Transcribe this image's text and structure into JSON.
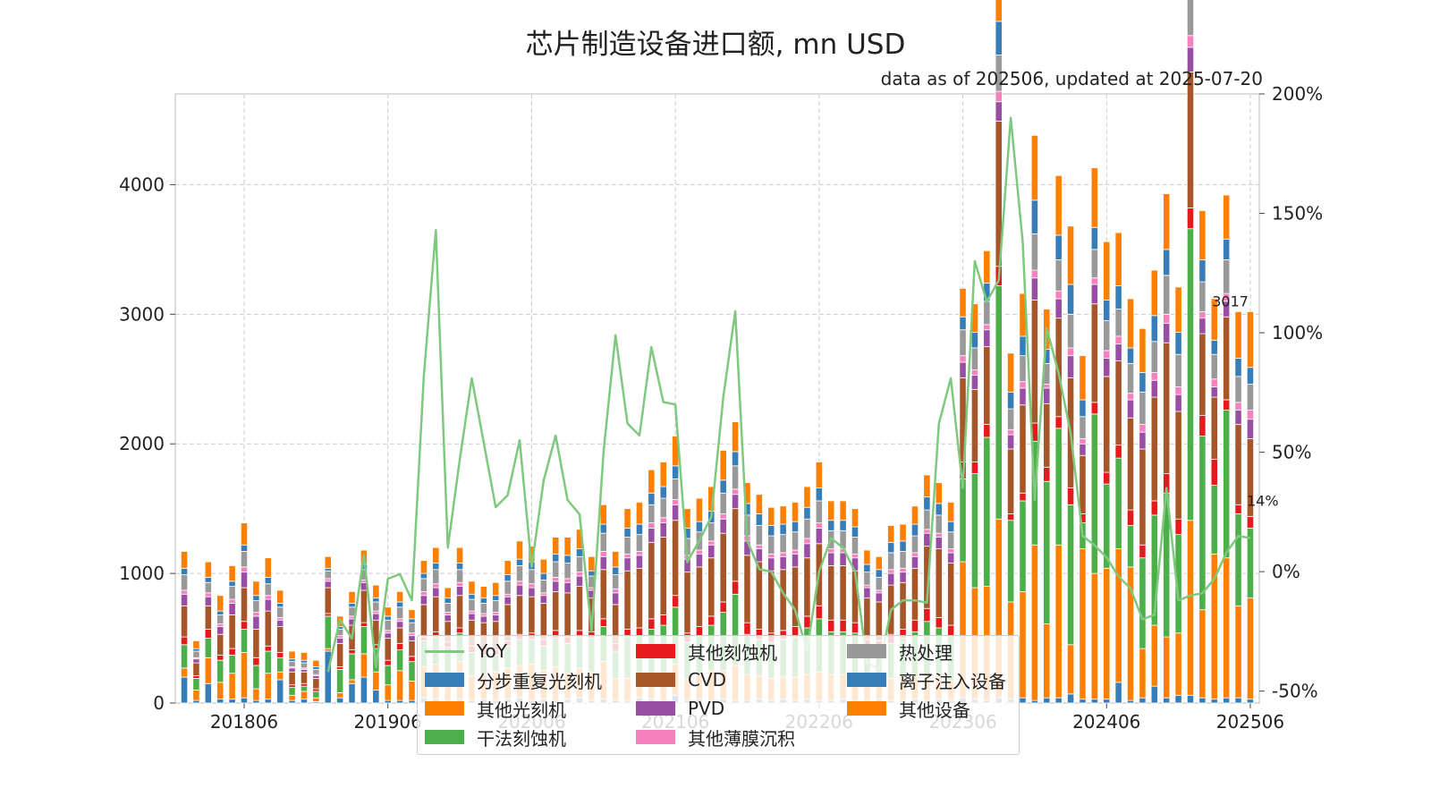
{
  "chart_data": {
    "type": "bar",
    "title": "芯片制造设备进口额, mn USD",
    "subtitle": "data as of 202506, updated at 2025-07-20",
    "x_tick_labels": [
      "201806",
      "201906",
      "202006",
      "202106",
      "202206",
      "202306",
      "202406",
      "202506"
    ],
    "y_left": {
      "ylim": [
        0,
        4700
      ],
      "ticks": [
        "0",
        "1000",
        "2000",
        "3000",
        "4000"
      ]
    },
    "y_right": {
      "ylim": [
        -0.55,
        2.0
      ],
      "ticks": [
        "-50%",
        "0%",
        "50%",
        "100%",
        "150%",
        "200%"
      ]
    },
    "grid": true,
    "legend_position": "bottom-center",
    "end_labels": {
      "total": "3017",
      "yoy": "14%"
    },
    "categories": [
      "201801",
      "201802",
      "201803",
      "201804",
      "201805",
      "201806",
      "201807",
      "201808",
      "201809",
      "201810",
      "201811",
      "201812",
      "201901",
      "201902",
      "201903",
      "201904",
      "201905",
      "201906",
      "201907",
      "201908",
      "201909",
      "201910",
      "201911",
      "201912",
      "202001",
      "202002",
      "202003",
      "202004",
      "202005",
      "202006",
      "202007",
      "202008",
      "202009",
      "202010",
      "202011",
      "202012",
      "202101",
      "202102",
      "202103",
      "202104",
      "202105",
      "202106",
      "202107",
      "202108",
      "202109",
      "202110",
      "202111",
      "202112",
      "202201",
      "202202",
      "202203",
      "202204",
      "202205",
      "202206",
      "202207",
      "202208",
      "202209",
      "202210",
      "202211",
      "202212",
      "202301",
      "202302",
      "202303",
      "202304",
      "202305",
      "202306",
      "202307",
      "202308",
      "202309",
      "202310",
      "202311",
      "202312",
      "202401",
      "202402",
      "202403",
      "202404",
      "202405",
      "202406",
      "202407",
      "202408",
      "202409",
      "202410",
      "202411",
      "202412",
      "202501",
      "202502",
      "202503",
      "202504",
      "202505",
      "202506"
    ],
    "series": [
      {
        "name": "YoY",
        "type": "line",
        "color": "#7fc97f",
        "values": [
          null,
          null,
          null,
          null,
          null,
          null,
          null,
          null,
          null,
          null,
          null,
          null,
          -0.42,
          -0.2,
          -0.28,
          0.07,
          -0.4,
          -0.03,
          -0.01,
          -0.12,
          0.82,
          1.43,
          0.1,
          0.47,
          0.81,
          0.54,
          0.27,
          0.32,
          0.55,
          0.02,
          0.38,
          0.57,
          0.3,
          0.24,
          -0.25,
          0.5,
          0.99,
          0.62,
          0.57,
          0.94,
          0.71,
          0.7,
          0.04,
          0.13,
          0.23,
          0.73,
          1.09,
          0.13,
          0.01,
          0.0,
          -0.09,
          -0.16,
          -0.33,
          0.0,
          0.14,
          0.1,
          0.0,
          -0.38,
          -0.41,
          -0.16,
          -0.12,
          -0.12,
          -0.13,
          0.62,
          0.81,
          0.35,
          1.3,
          1.13,
          1.22,
          1.9,
          1.38,
          0.3,
          1.02,
          0.83,
          0.58,
          0.15,
          0.11,
          0.06,
          -0.02,
          -0.07,
          -0.2,
          -0.18,
          0.35,
          -0.12,
          -0.1,
          -0.09,
          -0.03,
          0.08,
          0.15,
          0.14
        ]
      },
      {
        "name": "分步重复光刻机",
        "color": "#377eb8",
        "values": [
          200,
          20,
          150,
          30,
          30,
          40,
          20,
          30,
          180,
          20,
          30,
          10,
          400,
          40,
          150,
          200,
          100,
          20,
          20,
          20,
          40,
          30,
          20,
          30,
          20,
          30,
          20,
          30,
          40,
          20,
          30,
          20,
          30,
          40,
          20,
          30,
          20,
          20,
          40,
          30,
          20,
          60,
          20,
          30,
          20,
          30,
          20,
          20,
          30,
          20,
          30,
          20,
          30,
          20,
          20,
          30,
          20,
          20,
          30,
          20,
          20,
          30,
          20,
          30,
          20,
          40,
          30,
          20,
          40,
          30,
          40,
          20,
          40,
          40,
          70,
          30,
          30,
          30,
          160,
          20,
          40,
          130,
          40,
          60,
          60,
          40,
          30,
          40,
          40,
          30
        ]
      },
      {
        "name": "其他光刻机",
        "color": "#ff7f00",
        "values": [
          70,
          80,
          200,
          130,
          200,
          350,
          90,
          200,
          60,
          40,
          60,
          30,
          20,
          40,
          30,
          180,
          140,
          120,
          230,
          150,
          240,
          270,
          190,
          290,
          190,
          190,
          220,
          240,
          250,
          280,
          220,
          260,
          200,
          230,
          220,
          290,
          170,
          170,
          180,
          190,
          200,
          240,
          160,
          190,
          230,
          220,
          270,
          200,
          180,
          170,
          170,
          180,
          190,
          220,
          200,
          190,
          200,
          180,
          150,
          170,
          180,
          170,
          180,
          170,
          150,
          1050,
          860,
          880,
          1380,
          750,
          820,
          1200,
          570,
          1180,
          380,
          1160,
          970,
          1010,
          1030,
          1030,
          380,
          470,
          470,
          480,
          1350,
          680,
          1120,
          1080,
          710,
          780
        ]
      },
      {
        "name": "干法刻蚀机",
        "color": "#4daf4a",
        "values": [
          180,
          90,
          150,
          170,
          140,
          180,
          180,
          170,
          110,
          60,
          40,
          50,
          250,
          180,
          200,
          210,
          180,
          150,
          160,
          150,
          200,
          210,
          220,
          220,
          180,
          150,
          130,
          170,
          200,
          190,
          190,
          220,
          230,
          240,
          260,
          270,
          210,
          320,
          300,
          350,
          380,
          440,
          290,
          300,
          350,
          450,
          550,
          310,
          280,
          280,
          290,
          310,
          360,
          410,
          330,
          330,
          320,
          230,
          240,
          270,
          300,
          350,
          430,
          380,
          350,
          640,
          880,
          1150,
          1800,
          630,
          700,
          800,
          1100,
          900,
          1080,
          200,
          1230,
          650,
          700,
          320,
          700,
          850,
          1110,
          760,
          2250,
          1340,
          530,
          1140,
          710,
          540
        ]
      },
      {
        "name": "其他刻蚀机",
        "color": "#e41a1c",
        "values": [
          60,
          20,
          70,
          40,
          50,
          60,
          60,
          40,
          40,
          20,
          20,
          20,
          20,
          20,
          30,
          30,
          30,
          40,
          50,
          40,
          30,
          40,
          40,
          40,
          50,
          40,
          40,
          40,
          40,
          50,
          50,
          60,
          50,
          50,
          50,
          60,
          60,
          60,
          60,
          80,
          80,
          90,
          70,
          70,
          70,
          80,
          100,
          90,
          80,
          70,
          70,
          80,
          90,
          100,
          90,
          90,
          80,
          60,
          60,
          70,
          70,
          90,
          100,
          80,
          80,
          130,
          90,
          100,
          150,
          50,
          60,
          140,
          110,
          90,
          130,
          70,
          90,
          90,
          100,
          120,
          100,
          110,
          150,
          120,
          160,
          160,
          200,
          80,
          70,
          90
        ]
      },
      {
        "name": "CVD",
        "color": "#a65628",
        "values": [
          240,
          100,
          180,
          160,
          260,
          260,
          220,
          270,
          200,
          100,
          90,
          80,
          200,
          180,
          190,
          250,
          190,
          170,
          120,
          120,
          250,
          270,
          160,
          250,
          200,
          210,
          220,
          280,
          300,
          280,
          280,
          300,
          340,
          340,
          260,
          380,
          300,
          450,
          460,
          590,
          600,
          580,
          470,
          460,
          450,
          530,
          560,
          520,
          520,
          480,
          470,
          460,
          450,
          480,
          420,
          420,
          400,
          320,
          300,
          380,
          360,
          400,
          480,
          530,
          480,
          650,
          560,
          600,
          1120,
          500,
          680,
          950,
          490,
          760,
          850,
          450,
          760,
          740,
          650,
          710,
          740,
          800,
          1010,
          830,
          1050,
          630,
          480,
          640,
          620,
          600
        ]
      },
      {
        "name": "PVD",
        "color": "#984ea3",
        "values": [
          90,
          30,
          70,
          60,
          90,
          120,
          100,
          90,
          50,
          30,
          20,
          20,
          50,
          40,
          50,
          60,
          50,
          40,
          50,
          40,
          70,
          70,
          50,
          70,
          50,
          50,
          50,
          60,
          80,
          70,
          60,
          80,
          80,
          80,
          60,
          100,
          90,
          100,
          100,
          110,
          110,
          120,
          100,
          100,
          100,
          110,
          110,
          110,
          100,
          100,
          100,
          100,
          110,
          120,
          100,
          100,
          100,
          80,
          70,
          90,
          80,
          90,
          100,
          90,
          80,
          120,
          110,
          130,
          150,
          110,
          130,
          170,
          120,
          150,
          170,
          90,
          150,
          140,
          130,
          140,
          130,
          130,
          150,
          130,
          190,
          120,
          80,
          120,
          110,
          150
        ]
      },
      {
        "name": "其他薄膜沉积",
        "color": "#f781bf",
        "values": [
          30,
          10,
          30,
          20,
          30,
          40,
          30,
          30,
          20,
          10,
          10,
          10,
          20,
          20,
          20,
          20,
          20,
          20,
          20,
          20,
          30,
          30,
          20,
          30,
          20,
          20,
          20,
          20,
          30,
          30,
          20,
          30,
          30,
          30,
          20,
          40,
          30,
          30,
          30,
          40,
          40,
          40,
          30,
          30,
          30,
          40,
          40,
          40,
          30,
          30,
          30,
          30,
          40,
          40,
          30,
          30,
          30,
          20,
          20,
          30,
          30,
          30,
          30,
          30,
          30,
          50,
          40,
          40,
          80,
          40,
          50,
          60,
          30,
          60,
          60,
          40,
          50,
          60,
          60,
          50,
          60,
          60,
          70,
          60,
          90,
          50,
          60,
          60,
          60,
          70
        ]
      },
      {
        "name": "热处理",
        "color": "#999999",
        "values": [
          120,
          50,
          80,
          70,
          100,
          120,
          90,
          90,
          80,
          40,
          40,
          40,
          60,
          50,
          70,
          80,
          70,
          80,
          90,
          80,
          100,
          110,
          70,
          100,
          90,
          80,
          90,
          100,
          120,
          110,
          100,
          120,
          120,
          120,
          90,
          140,
          110,
          130,
          130,
          140,
          150,
          160,
          130,
          140,
          140,
          160,
          180,
          160,
          150,
          140,
          140,
          140,
          150,
          170,
          140,
          140,
          130,
          100,
          100,
          130,
          130,
          130,
          150,
          140,
          130,
          200,
          170,
          180,
          280,
          160,
          200,
          280,
          160,
          240,
          260,
          170,
          220,
          230,
          210,
          230,
          250,
          240,
          300,
          250,
          330,
          230,
          190,
          260,
          200,
          200
        ]
      },
      {
        "name": "离子注入设备",
        "color": "#377eb8",
        "values": [
          50,
          20,
          40,
          30,
          40,
          50,
          40,
          50,
          30,
          20,
          20,
          20,
          20,
          20,
          30,
          40,
          30,
          30,
          40,
          30,
          40,
          50,
          40,
          50,
          40,
          40,
          40,
          50,
          50,
          60,
          50,
          60,
          60,
          60,
          40,
          70,
          60,
          70,
          80,
          90,
          90,
          100,
          80,
          80,
          90,
          100,
          110,
          90,
          90,
          80,
          80,
          80,
          90,
          100,
          80,
          80,
          80,
          60,
          60,
          80,
          80,
          90,
          100,
          90,
          80,
          100,
          120,
          140,
          260,
          130,
          150,
          260,
          110,
          190,
          230,
          130,
          170,
          160,
          180,
          120,
          150,
          200,
          200,
          170,
          260,
          170,
          110,
          160,
          140,
          130
        ]
      },
      {
        "name": "其他设备",
        "color": "#ff7f00",
        "values": [
          130,
          60,
          120,
          120,
          120,
          170,
          110,
          150,
          100,
          60,
          60,
          50,
          90,
          80,
          90,
          110,
          100,
          70,
          80,
          70,
          100,
          120,
          80,
          120,
          100,
          90,
          100,
          110,
          140,
          120,
          110,
          130,
          140,
          150,
          110,
          150,
          120,
          150,
          170,
          180,
          190,
          230,
          150,
          180,
          190,
          230,
          230,
          160,
          150,
          140,
          140,
          150,
          160,
          200,
          150,
          150,
          140,
          110,
          100,
          130,
          130,
          140,
          170,
          160,
          150,
          220,
          220,
          250,
          510,
          300,
          330,
          500,
          310,
          460,
          450,
          340,
          460,
          450,
          410,
          380,
          340,
          350,
          430,
          350,
          560,
          380,
          320,
          340,
          360,
          430
        ]
      }
    ]
  }
}
